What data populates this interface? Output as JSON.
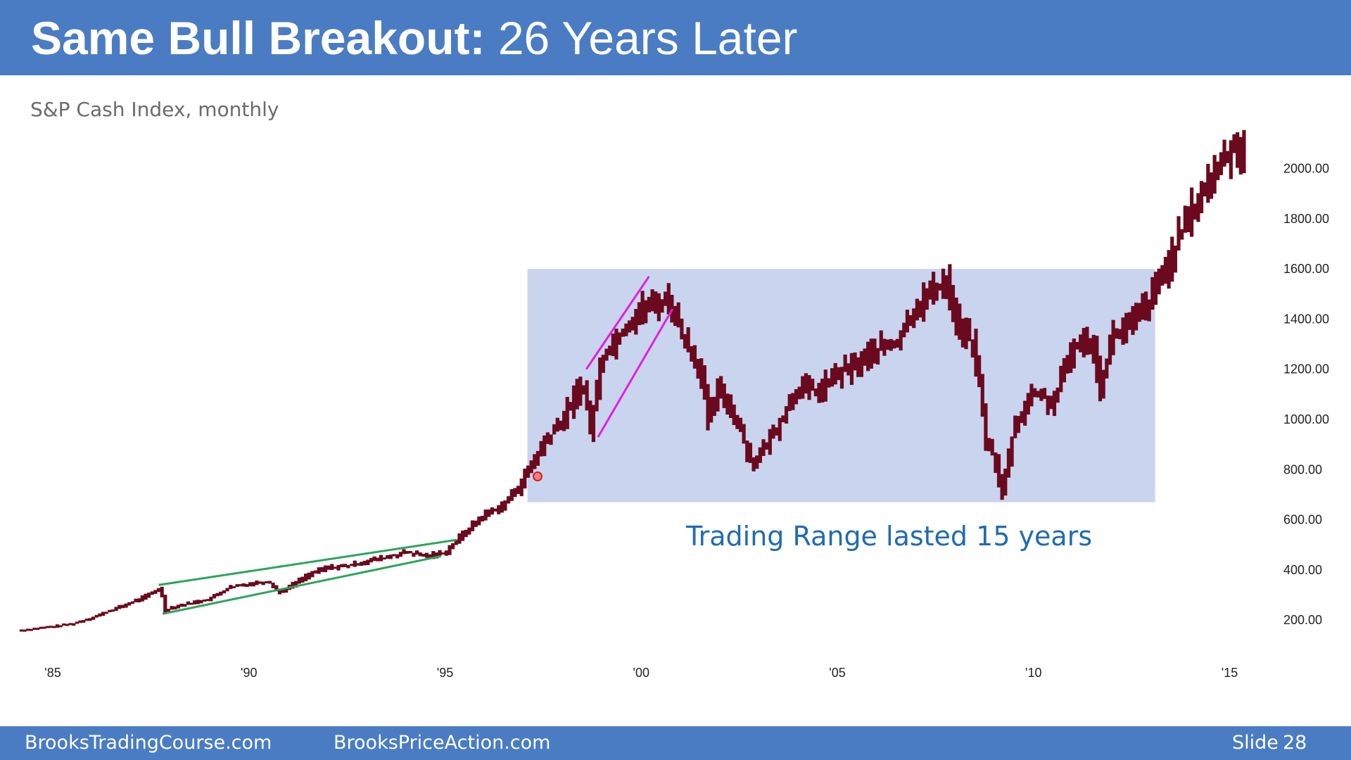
{
  "slide": {
    "title_bold": "Same Bull Breakout:",
    "title_rest": "26 Years Later",
    "subtitle": "S&P Cash Index, monthly",
    "annotation": "Trading Range lasted 15 years"
  },
  "footer": {
    "site1": "BrooksTradingCourse.com",
    "site2": "BrooksPriceAction.com",
    "slide_label": "Slide",
    "slide_number": "28"
  },
  "colors": {
    "header_bg": "#4a7cc3",
    "bars": "#6b0a1e",
    "range_box": "#c9d4ef",
    "channel_1987_1995": "#2aa55a",
    "channel_1998_2000": "#e020e0",
    "annotation": "#1f6bb3"
  },
  "chart_data": {
    "type": "line",
    "title": "S&P Cash Index, monthly",
    "x_ticks": [
      "'85",
      "'90",
      "'95",
      "'00",
      "'05",
      "'10",
      "'15"
    ],
    "x_tick_years": [
      1985,
      1990,
      1995,
      2000,
      2005,
      2010,
      2015
    ],
    "y_ticks": [
      "200.00",
      "400.00",
      "600.00",
      "800.00",
      "1000.00",
      "1200.00",
      "1400.00",
      "1600.00",
      "1800.00",
      "2000.00"
    ],
    "y_tick_values": [
      200,
      400,
      600,
      800,
      1000,
      1200,
      1400,
      1600,
      1800,
      2000
    ],
    "ylim": [
      0,
      2150
    ],
    "xlim": [
      1984.1,
      2016.0
    ],
    "series": [
      {
        "points": [
          [
            1984.2,
            160
          ],
          [
            1985.0,
            175
          ],
          [
            1985.5,
            185
          ],
          [
            1986.0,
            210
          ],
          [
            1986.5,
            240
          ],
          [
            1987.0,
            270
          ],
          [
            1987.5,
            305
          ],
          [
            1987.75,
            330
          ],
          [
            1987.85,
            235
          ],
          [
            1988.0,
            250
          ],
          [
            1988.5,
            268
          ],
          [
            1989.0,
            285
          ],
          [
            1989.5,
            330
          ],
          [
            1990.0,
            345
          ],
          [
            1990.5,
            355
          ],
          [
            1990.75,
            310
          ],
          [
            1991.0,
            330
          ],
          [
            1991.5,
            380
          ],
          [
            1992.0,
            410
          ],
          [
            1992.5,
            415
          ],
          [
            1993.0,
            435
          ],
          [
            1993.5,
            450
          ],
          [
            1994.0,
            470
          ],
          [
            1994.5,
            455
          ],
          [
            1995.0,
            470
          ],
          [
            1995.5,
            550
          ],
          [
            1996.0,
            620
          ],
          [
            1996.5,
            660
          ],
          [
            1997.0,
            760
          ],
          [
            1997.5,
            900
          ],
          [
            1998.0,
            1000
          ],
          [
            1998.5,
            1150
          ],
          [
            1998.7,
            960
          ],
          [
            1999.0,
            1250
          ],
          [
            1999.5,
            1350
          ],
          [
            2000.0,
            1440
          ],
          [
            2000.7,
            1480
          ],
          [
            2001.0,
            1350
          ],
          [
            2001.5,
            1200
          ],
          [
            2001.7,
            1000
          ],
          [
            2002.0,
            1130
          ],
          [
            2002.5,
            970
          ],
          [
            2002.8,
            830
          ],
          [
            2003.0,
            850
          ],
          [
            2003.5,
            980
          ],
          [
            2004.0,
            1130
          ],
          [
            2004.5,
            1110
          ],
          [
            2005.0,
            1180
          ],
          [
            2005.5,
            1220
          ],
          [
            2006.0,
            1280
          ],
          [
            2006.5,
            1300
          ],
          [
            2007.0,
            1450
          ],
          [
            2007.5,
            1520
          ],
          [
            2007.8,
            1560
          ],
          [
            2008.0,
            1400
          ],
          [
            2008.5,
            1280
          ],
          [
            2008.8,
            900
          ],
          [
            2009.0,
            850
          ],
          [
            2009.2,
            700
          ],
          [
            2009.5,
            970
          ],
          [
            2010.0,
            1110
          ],
          [
            2010.5,
            1060
          ],
          [
            2011.0,
            1290
          ],
          [
            2011.5,
            1320
          ],
          [
            2011.7,
            1130
          ],
          [
            2012.0,
            1330
          ],
          [
            2012.5,
            1380
          ],
          [
            2013.0,
            1480
          ],
          [
            2013.5,
            1650
          ],
          [
            2014.0,
            1820
          ],
          [
            2014.5,
            1950
          ],
          [
            2015.0,
            2080
          ],
          [
            2015.4,
            2100
          ]
        ]
      }
    ],
    "range_box": {
      "x": [
        1997.1,
        2013.1
      ],
      "y": [
        670,
        1600
      ]
    },
    "annotations": [
      {
        "text": "Trading Range lasted 15 years"
      }
    ]
  }
}
